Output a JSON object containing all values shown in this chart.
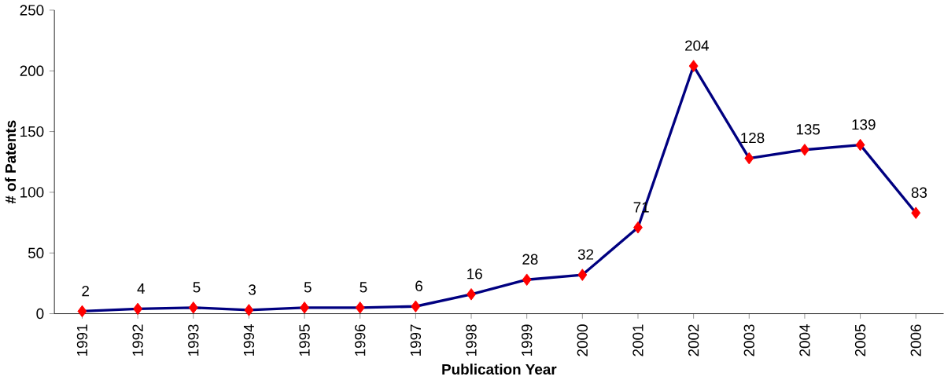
{
  "chart_data": {
    "type": "line",
    "xlabel": "**Publication Year**",
    "ylabel": "**# of Patents**",
    "categories": [
      "1991",
      "1992",
      "1993",
      "1994",
      "1995",
      "1996",
      "1997",
      "1998",
      "1999",
      "2000",
      "2001",
      "2002",
      "2003",
      "2004",
      "2005",
      "2006"
    ],
    "values": [
      2,
      4,
      5,
      3,
      5,
      5,
      6,
      16,
      28,
      32,
      71,
      204,
      128,
      135,
      139,
      83
    ],
    "color": "#000080",
    "colors": [
      "#ff0000",
      "#ff0000",
      "#ff0000",
      "#ff0000",
      "#ff0000",
      "#ff0000",
      "#ff0000",
      "#ff0000",
      "#ff0000",
      "#ff0000",
      "#ff0000",
      "#ff0000",
      "#ff0000",
      "#ff0000",
      "#ff0000",
      "#ff0000"
    ],
    "marker": "diamond",
    "line_style": "solid",
    "data_labels": true,
    "grid": false,
    "ylim": [
      0,
      250
    ],
    "yticks": [
      0,
      50,
      100,
      150,
      200,
      250
    ]
  }
}
